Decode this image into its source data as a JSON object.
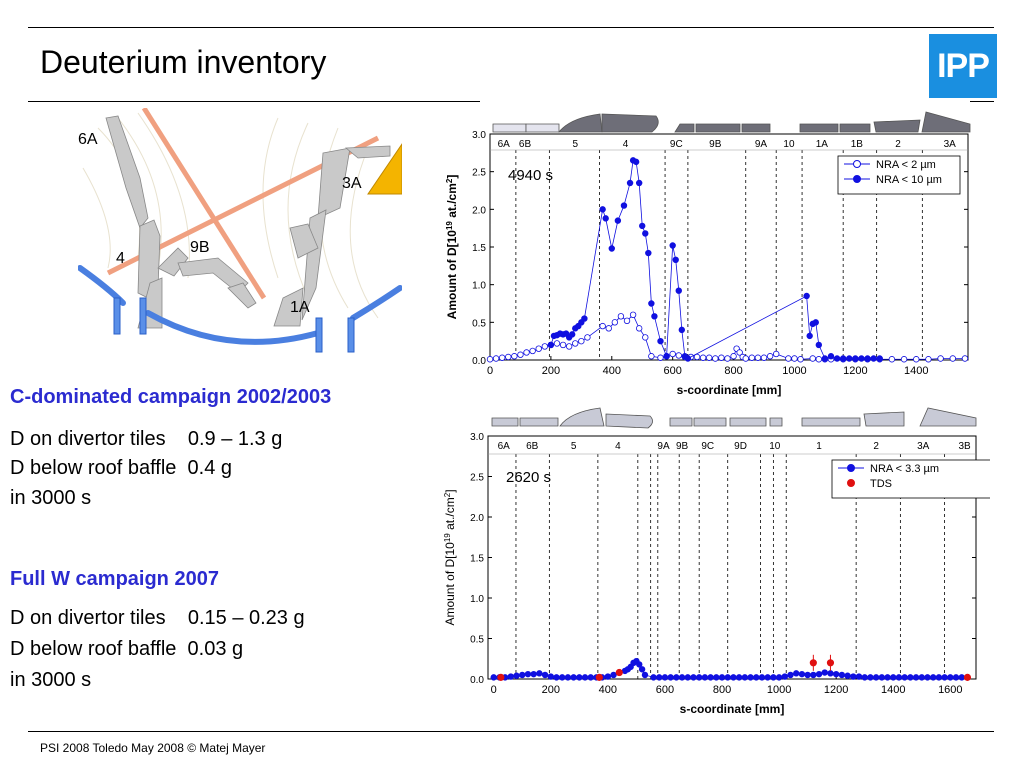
{
  "header": {
    "title": "Deuterium inventory",
    "logo_text": "IPP"
  },
  "diagram": {
    "labels": [
      "6A",
      "3A",
      "9B",
      "4",
      "1A"
    ]
  },
  "left_text": {
    "c_heading": "C-dominated campaign 2002/2003",
    "c_line1": "D on divertor tiles    0.9 – 1.3 g",
    "c_line2": "D below roof baffle  0.4 g",
    "c_line3": "in 3000 s",
    "w_heading": "Full W campaign 2007",
    "w_line1": "D on divertor tiles    0.15 – 0.23 g",
    "w_line2": "D below roof baffle  0.03 g",
    "w_line3": "in 3000 s"
  },
  "footer": {
    "text": "PSI 2008 Toledo May 2008 © Matej Mayer"
  },
  "colors": {
    "accent": "#2b2bd0",
    "logo": "#1a8fe0",
    "series": "#1010e0",
    "tds": "#e01010"
  },
  "chart_data": [
    {
      "type": "scatter",
      "xlabel": "s-coordinate [mm]",
      "ylabel": "Amount of D[10^19 at./cm^2]",
      "ylabel_parts": [
        "Amount of D[10",
        "19",
        " at./cm",
        "2",
        "]"
      ],
      "xlim": [
        0,
        1570
      ],
      "ylim": [
        0,
        3.0
      ],
      "x_ticks": [
        0,
        200,
        400,
        600,
        800,
        1000,
        1200,
        1400
      ],
      "y_ticks": [
        "0.0",
        "0.5",
        "1.0",
        "1.5",
        "2.0",
        "2.5",
        "3.0"
      ],
      "annotation": "4940 s",
      "legend_position": "top-right",
      "regions": [
        {
          "label": "6A",
          "x": 45
        },
        {
          "label": "6B",
          "x": 115
        },
        {
          "label": "5",
          "x": 280
        },
        {
          "label": "4",
          "x": 445
        },
        {
          "label": "9C",
          "x": 612
        },
        {
          "label": "9B",
          "x": 740
        },
        {
          "label": "9A",
          "x": 890
        },
        {
          "label": "10",
          "x": 982
        },
        {
          "label": "1A",
          "x": 1090
        },
        {
          "label": "1B",
          "x": 1205
        },
        {
          "label": "2",
          "x": 1340
        },
        {
          "label": "3A",
          "x": 1510
        }
      ],
      "dividers": [
        85,
        195,
        360,
        575,
        650,
        840,
        940,
        1025,
        1160,
        1270,
        1420
      ],
      "series": [
        {
          "name": "NRA < 2 µm",
          "marker": "open",
          "x": [
            0,
            20,
            40,
            60,
            80,
            100,
            120,
            140,
            160,
            180,
            200,
            220,
            240,
            260,
            280,
            300,
            320,
            370,
            390,
            410,
            430,
            450,
            470,
            490,
            510,
            530,
            560,
            580,
            600,
            620,
            640,
            660,
            680,
            700,
            720,
            740,
            760,
            780,
            800,
            810,
            820,
            830,
            840,
            860,
            880,
            900,
            920,
            940,
            980,
            1000,
            1020,
            1060,
            1080,
            1100,
            1120,
            1160,
            1200,
            1240,
            1280,
            1320,
            1360,
            1400,
            1440,
            1480,
            1520,
            1560
          ],
          "y": [
            0.01,
            0.02,
            0.03,
            0.04,
            0.05,
            0.07,
            0.1,
            0.12,
            0.15,
            0.18,
            0.2,
            0.22,
            0.2,
            0.18,
            0.22,
            0.25,
            0.3,
            0.45,
            0.42,
            0.5,
            0.58,
            0.52,
            0.6,
            0.42,
            0.3,
            0.05,
            0.03,
            0.05,
            0.08,
            0.06,
            0.04,
            0.04,
            0.04,
            0.03,
            0.03,
            0.02,
            0.03,
            0.02,
            0.05,
            0.15,
            0.1,
            0.04,
            0.02,
            0.03,
            0.03,
            0.03,
            0.05,
            0.08,
            0.02,
            0.02,
            0.01,
            0.02,
            0.01,
            0.01,
            0.01,
            0.01,
            0.01,
            0.01,
            0.01,
            0.01,
            0.01,
            0.01,
            0.01,
            0.02,
            0.02,
            0.02
          ]
        },
        {
          "name": "NRA < 10 µm",
          "marker": "filled",
          "x": [
            200,
            210,
            220,
            230,
            240,
            250,
            260,
            270,
            280,
            290,
            300,
            310,
            370,
            380,
            400,
            420,
            440,
            460,
            470,
            480,
            490,
            500,
            510,
            520,
            530,
            540,
            560,
            580,
            600,
            610,
            620,
            630,
            640,
            650,
            1040,
            1050,
            1060,
            1070,
            1080,
            1100,
            1120,
            1140,
            1160,
            1180,
            1200,
            1220,
            1240,
            1260,
            1280
          ],
          "y": [
            0.2,
            0.32,
            0.33,
            0.35,
            0.34,
            0.35,
            0.3,
            0.34,
            0.42,
            0.45,
            0.5,
            0.55,
            2.0,
            1.88,
            1.48,
            1.85,
            2.05,
            2.35,
            2.65,
            2.63,
            2.35,
            1.78,
            1.68,
            1.42,
            0.75,
            0.58,
            0.25,
            0.05,
            1.52,
            1.33,
            0.92,
            0.4,
            0.05,
            0.02,
            0.85,
            0.32,
            0.48,
            0.5,
            0.2,
            0.02,
            0.05,
            0.02,
            0.02,
            0.02,
            0.02,
            0.02,
            0.02,
            0.02,
            0.02
          ]
        }
      ]
    },
    {
      "type": "scatter",
      "xlabel": "s-coordinate [mm]",
      "ylabel": "Amount of D[10^19 at./cm^2]",
      "ylabel_parts": [
        "Amount of D[10",
        "19",
        " at./cm",
        "2",
        "]"
      ],
      "xlim": [
        -20,
        1690
      ],
      "ylim": [
        0,
        3.0
      ],
      "x_ticks": [
        0,
        200,
        400,
        600,
        800,
        1000,
        1200,
        1400,
        1600
      ],
      "y_ticks": [
        "0.0",
        "0.5",
        "1.0",
        "1.5",
        "2.0",
        "2.5",
        "3.0"
      ],
      "annotation": "2620 s",
      "legend_position": "top-right",
      "regions": [
        {
          "label": "6A",
          "x": 35
        },
        {
          "label": "6B",
          "x": 135
        },
        {
          "label": "5",
          "x": 280
        },
        {
          "label": "4",
          "x": 435
        },
        {
          "label": "9A",
          "x": 595
        },
        {
          "label": "9B",
          "x": 660
        },
        {
          "label": "9C",
          "x": 750
        },
        {
          "label": "9D",
          "x": 865
        },
        {
          "label": "10",
          "x": 985
        },
        {
          "label": "1",
          "x": 1140
        },
        {
          "label": "2",
          "x": 1340
        },
        {
          "label": "3A",
          "x": 1505
        },
        {
          "label": "3B",
          "x": 1650
        }
      ],
      "dividers": [
        78,
        195,
        365,
        505,
        550,
        575,
        650,
        720,
        820,
        935,
        980,
        1025,
        1270,
        1425,
        1580
      ],
      "series": [
        {
          "name": "NRA < 3.3 µm",
          "marker": "filled",
          "x": [
            0,
            20,
            40,
            60,
            80,
            100,
            120,
            140,
            160,
            180,
            200,
            220,
            240,
            260,
            280,
            300,
            320,
            340,
            360,
            380,
            400,
            420,
            440,
            460,
            470,
            480,
            490,
            500,
            510,
            520,
            530,
            560,
            580,
            600,
            620,
            640,
            660,
            680,
            700,
            720,
            740,
            760,
            780,
            800,
            820,
            840,
            860,
            880,
            900,
            920,
            940,
            960,
            980,
            1000,
            1020,
            1040,
            1060,
            1080,
            1100,
            1120,
            1140,
            1160,
            1180,
            1200,
            1220,
            1240,
            1260,
            1280,
            1300,
            1320,
            1340,
            1360,
            1380,
            1400,
            1420,
            1440,
            1460,
            1480,
            1500,
            1520,
            1540,
            1560,
            1580,
            1600,
            1620,
            1640,
            1660
          ],
          "y": [
            0.02,
            0.02,
            0.02,
            0.03,
            0.04,
            0.05,
            0.06,
            0.06,
            0.07,
            0.05,
            0.03,
            0.02,
            0.02,
            0.02,
            0.02,
            0.02,
            0.02,
            0.02,
            0.02,
            0.02,
            0.03,
            0.05,
            0.08,
            0.1,
            0.12,
            0.15,
            0.2,
            0.22,
            0.18,
            0.12,
            0.05,
            0.02,
            0.02,
            0.02,
            0.02,
            0.02,
            0.02,
            0.02,
            0.02,
            0.02,
            0.02,
            0.02,
            0.02,
            0.02,
            0.02,
            0.02,
            0.02,
            0.02,
            0.02,
            0.02,
            0.02,
            0.02,
            0.02,
            0.02,
            0.03,
            0.05,
            0.07,
            0.06,
            0.05,
            0.05,
            0.06,
            0.08,
            0.07,
            0.06,
            0.05,
            0.04,
            0.03,
            0.03,
            0.02,
            0.02,
            0.02,
            0.02,
            0.02,
            0.02,
            0.02,
            0.02,
            0.02,
            0.02,
            0.02,
            0.02,
            0.02,
            0.02,
            0.02,
            0.02,
            0.02,
            0.02,
            0.02
          ]
        },
        {
          "name": "TDS",
          "marker": "red",
          "x": [
            25,
            370,
            440,
            1120,
            1180,
            1660
          ],
          "y": [
            0.02,
            0.02,
            0.08,
            0.2,
            0.2,
            0.02
          ]
        }
      ]
    }
  ]
}
